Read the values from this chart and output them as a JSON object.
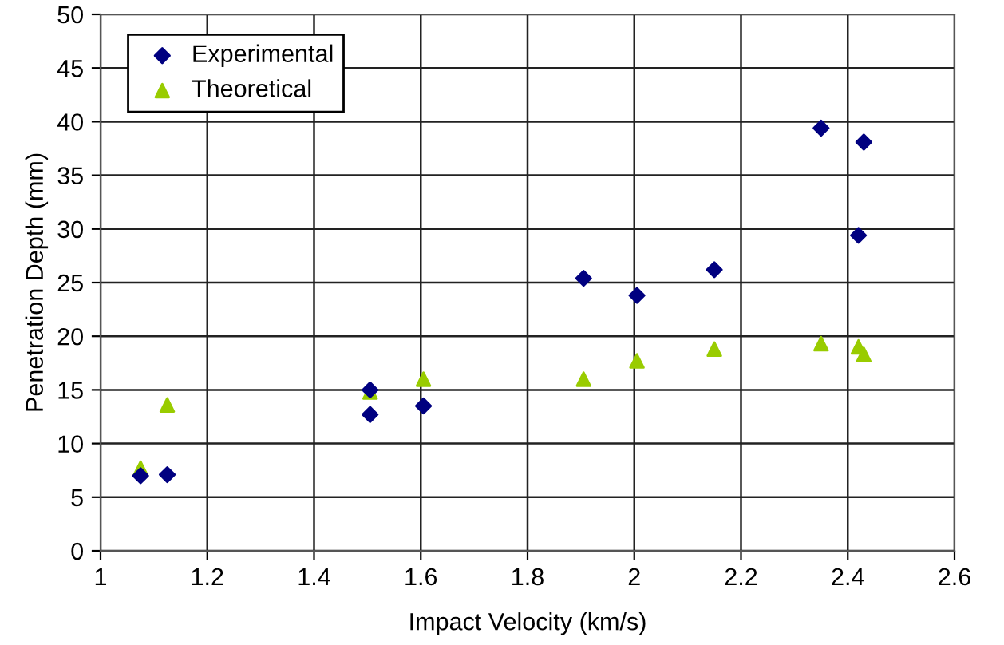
{
  "chart_data": {
    "type": "scatter",
    "xlabel": "Impact Velocity (km/s)",
    "ylabel": "Penetration Depth (mm)",
    "series": [
      {
        "name": "Experimental",
        "color": "#000080",
        "marker": "diamond",
        "x": [
          1.075,
          1.125,
          1.505,
          1.505,
          1.605,
          1.905,
          2.005,
          2.15,
          2.35,
          2.42,
          2.43
        ],
        "values": [
          7.0,
          7.1,
          15.0,
          12.7,
          13.5,
          25.4,
          23.8,
          26.2,
          39.4,
          29.4,
          38.1
        ]
      },
      {
        "name": "Theoretical",
        "color": "#99cc00",
        "marker": "triangle",
        "x": [
          1.075,
          1.125,
          1.505,
          1.605,
          1.905,
          2.005,
          2.15,
          2.35,
          2.42,
          2.43
        ],
        "values": [
          7.7,
          13.6,
          14.8,
          16.0,
          16.0,
          17.7,
          18.8,
          19.3,
          19.0,
          18.3
        ]
      }
    ],
    "xlim": [
      1,
      2.6
    ],
    "xticks": [
      1,
      1.2,
      1.4,
      1.6,
      1.8,
      2,
      2.2,
      2.4,
      2.6
    ],
    "ylim": [
      0,
      50
    ],
    "yticks": [
      0,
      5,
      10,
      15,
      20,
      25,
      30,
      35,
      40,
      45,
      50
    ],
    "grid": true,
    "legend": "top left"
  }
}
